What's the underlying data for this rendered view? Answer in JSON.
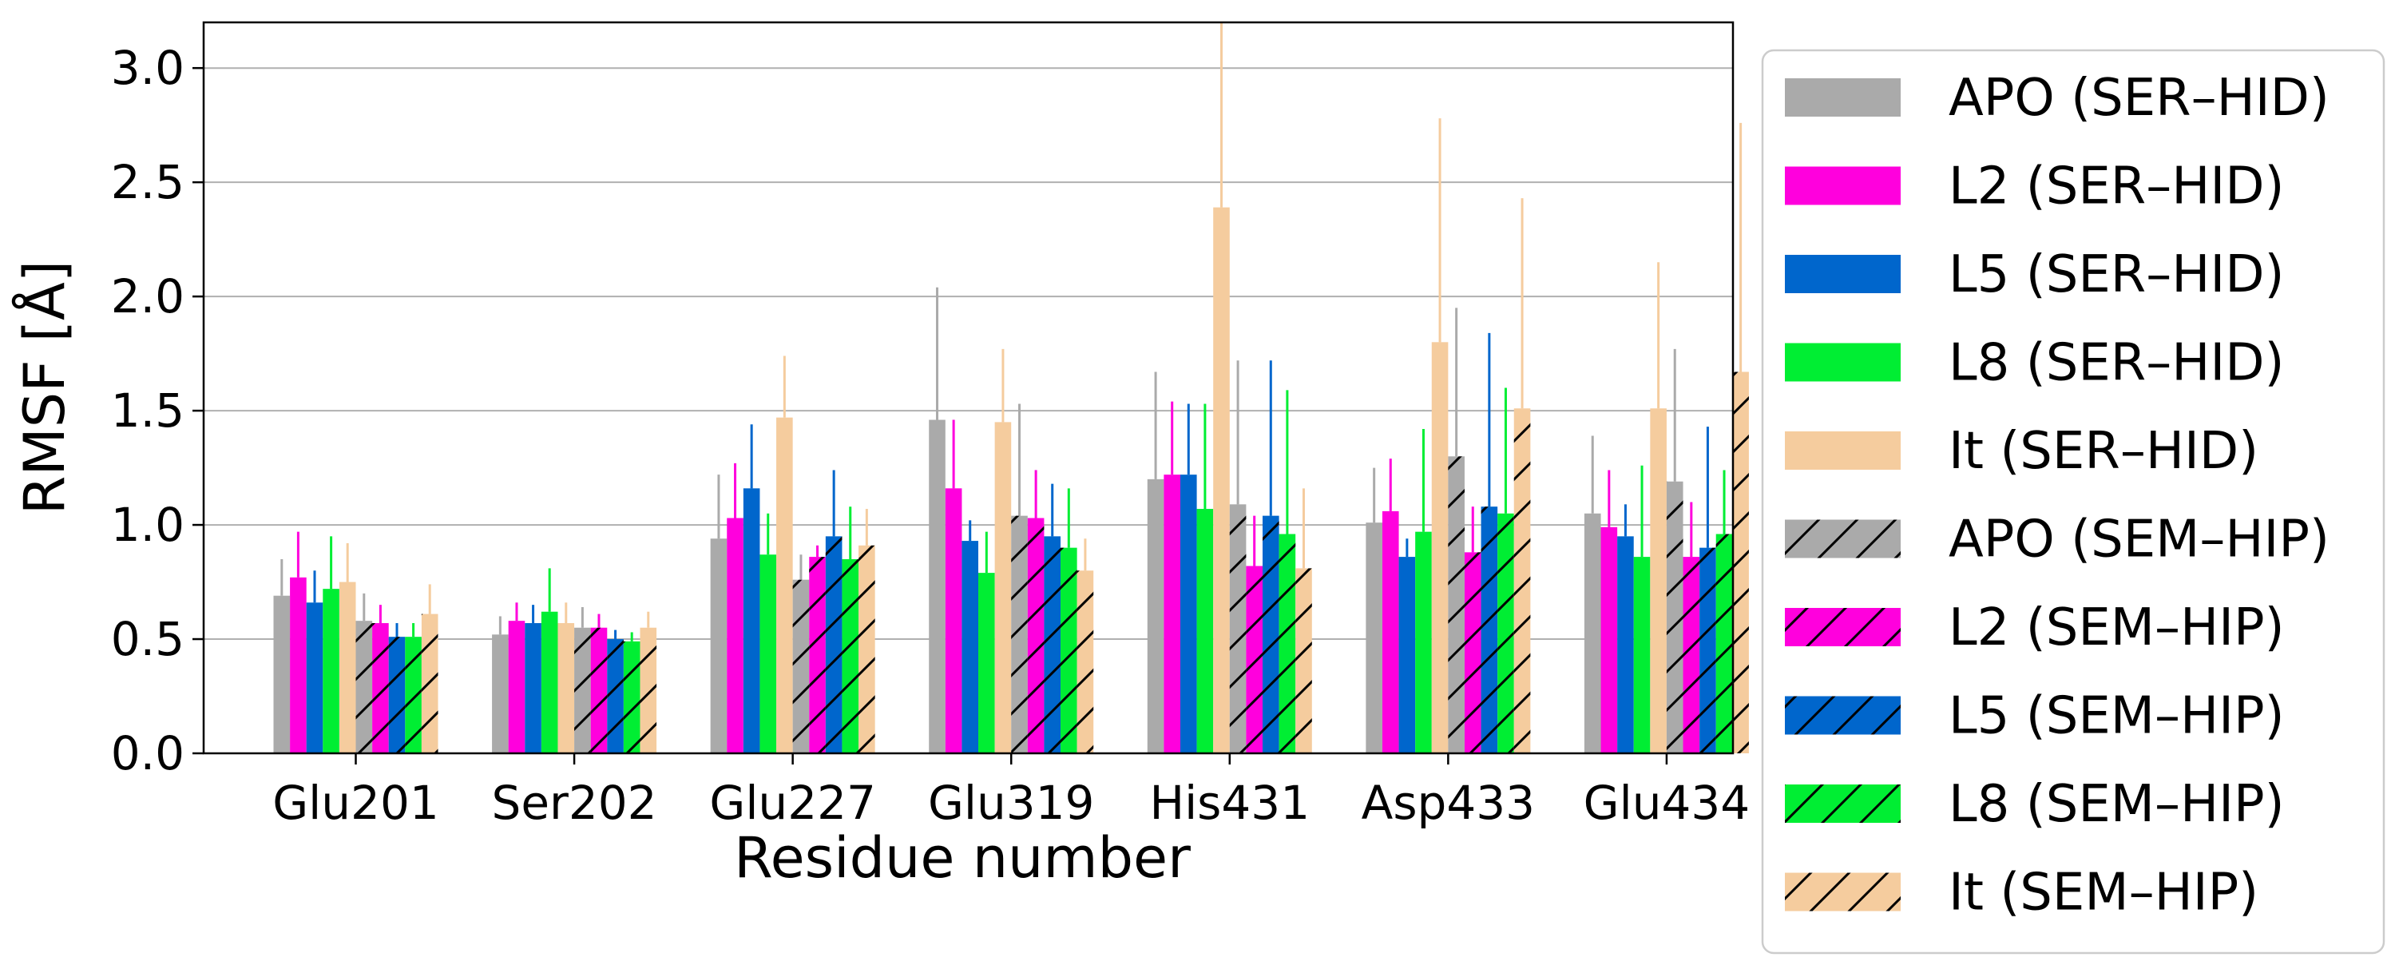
{
  "chart_data": {
    "type": "bar",
    "title": "",
    "xlabel": "Residue number",
    "ylabel": "RMSF [Å]",
    "ylim": [
      0,
      3.2
    ],
    "yticks": [
      "0.0",
      "0.5",
      "1.0",
      "1.5",
      "2.0",
      "2.5",
      "3.0"
    ],
    "grid": "horizontal",
    "legend_position": "right-outside",
    "categories": [
      "Glu201",
      "Ser202",
      "Glu227",
      "Glu319",
      "His431",
      "Asp433",
      "Glu434"
    ],
    "series": [
      {
        "name": "APO (SER–HID)",
        "color": "#aaaaaa",
        "hatch": false,
        "values": [
          0.69,
          0.52,
          0.94,
          1.46,
          1.2,
          1.01,
          1.05
        ],
        "errors": [
          0.16,
          0.08,
          0.28,
          0.58,
          0.47,
          0.24,
          0.34
        ]
      },
      {
        "name": "L2 (SER–HID)",
        "color": "#ff00dd",
        "hatch": false,
        "values": [
          0.77,
          0.58,
          1.03,
          1.16,
          1.22,
          1.06,
          0.99
        ],
        "errors": [
          0.2,
          0.08,
          0.24,
          0.3,
          0.32,
          0.23,
          0.25
        ]
      },
      {
        "name": "L5 (SER–HID)",
        "color": "#0066cc",
        "hatch": false,
        "values": [
          0.66,
          0.57,
          1.16,
          0.93,
          1.22,
          0.86,
          0.95
        ],
        "errors": [
          0.14,
          0.08,
          0.28,
          0.09,
          0.31,
          0.08,
          0.14
        ]
      },
      {
        "name": "L8 (SER–HID)",
        "color": "#00ee33",
        "hatch": false,
        "values": [
          0.72,
          0.62,
          0.87,
          0.79,
          1.07,
          0.97,
          0.86
        ],
        "errors": [
          0.23,
          0.19,
          0.18,
          0.18,
          0.46,
          0.45,
          0.4
        ]
      },
      {
        "name": "It (SER–HID)",
        "color": "#f5cc9e",
        "hatch": false,
        "values": [
          0.75,
          0.57,
          1.47,
          1.45,
          2.39,
          1.8,
          1.51
        ],
        "errors": [
          0.17,
          0.09,
          0.27,
          0.32,
          0.81,
          0.98,
          0.64
        ]
      },
      {
        "name": "APO (SEM–HIP)",
        "color": "#aaaaaa",
        "hatch": true,
        "values": [
          0.58,
          0.55,
          0.76,
          1.04,
          1.09,
          1.3,
          1.19
        ],
        "errors": [
          0.12,
          0.09,
          0.11,
          0.49,
          0.63,
          0.65,
          0.58
        ]
      },
      {
        "name": "L2 (SEM–HIP)",
        "color": "#ff00dd",
        "hatch": true,
        "values": [
          0.57,
          0.55,
          0.86,
          1.03,
          0.82,
          0.88,
          0.86
        ],
        "errors": [
          0.08,
          0.06,
          0.05,
          0.21,
          0.22,
          0.2,
          0.24
        ]
      },
      {
        "name": "L5 (SEM–HIP)",
        "color": "#0066cc",
        "hatch": true,
        "values": [
          0.51,
          0.5,
          0.95,
          0.95,
          1.04,
          1.08,
          0.9
        ],
        "errors": [
          0.06,
          0.04,
          0.29,
          0.23,
          0.68,
          0.76,
          0.53
        ]
      },
      {
        "name": "L8 (SEM–HIP)",
        "color": "#00ee33",
        "hatch": true,
        "values": [
          0.51,
          0.49,
          0.85,
          0.9,
          0.96,
          1.05,
          0.96
        ],
        "errors": [
          0.06,
          0.04,
          0.23,
          0.26,
          0.63,
          0.55,
          0.28
        ]
      },
      {
        "name": "It (SEM–HIP)",
        "color": "#f5cc9e",
        "hatch": true,
        "values": [
          0.61,
          0.55,
          0.91,
          0.8,
          0.81,
          1.51,
          1.67
        ],
        "errors": [
          0.13,
          0.07,
          0.16,
          0.14,
          0.35,
          0.92,
          1.09
        ]
      }
    ]
  }
}
